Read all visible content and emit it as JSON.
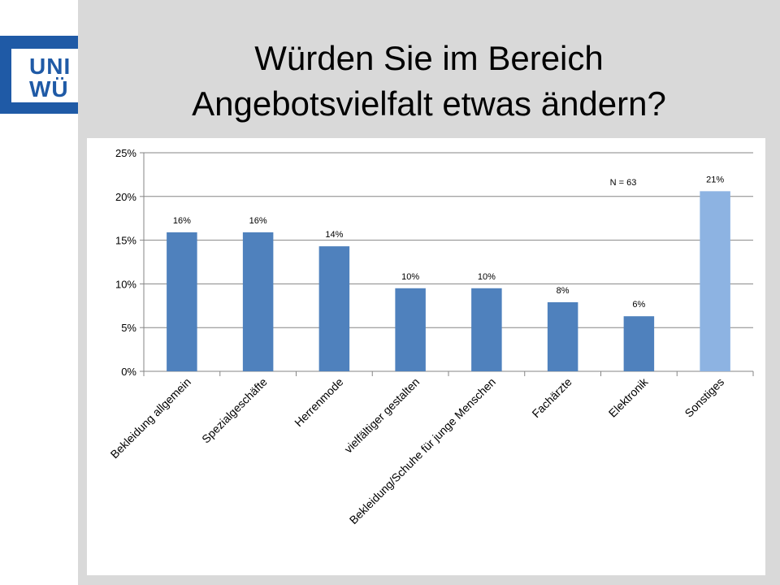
{
  "slide": {
    "title_line1": "Würden Sie im Bereich",
    "title_line2": "Angebotsvielfalt etwas ändern?"
  },
  "logo": {
    "line1": "UNI",
    "line2": "WÜ"
  },
  "chart_data": {
    "type": "bar",
    "title": "",
    "xlabel": "",
    "ylabel": "",
    "ylim": [
      0,
      25
    ],
    "yticks": [
      0,
      5,
      10,
      15,
      20,
      25
    ],
    "ytick_labels": [
      "0%",
      "5%",
      "10%",
      "15%",
      "20%",
      "25%"
    ],
    "categories": [
      "Bekleidung allgemein",
      "Spezialgeschäfte",
      "Herrenmode",
      "vielfältiger gestalten",
      "Bekleidung/Schuhe für junge Menschen",
      "Fachärzte",
      "Elektronik",
      "Sonstiges"
    ],
    "values": [
      15.9,
      15.9,
      14.3,
      9.5,
      9.5,
      7.9,
      6.3,
      20.6
    ],
    "data_labels": [
      "16%",
      "16%",
      "14%",
      "10%",
      "10%",
      "8%",
      "6%",
      "21%"
    ],
    "bar_colors": [
      "#4f81bd",
      "#4f81bd",
      "#4f81bd",
      "#4f81bd",
      "#4f81bd",
      "#4f81bd",
      "#4f81bd",
      "#8db3e2"
    ],
    "annotation": "N = 63",
    "grid": true
  }
}
